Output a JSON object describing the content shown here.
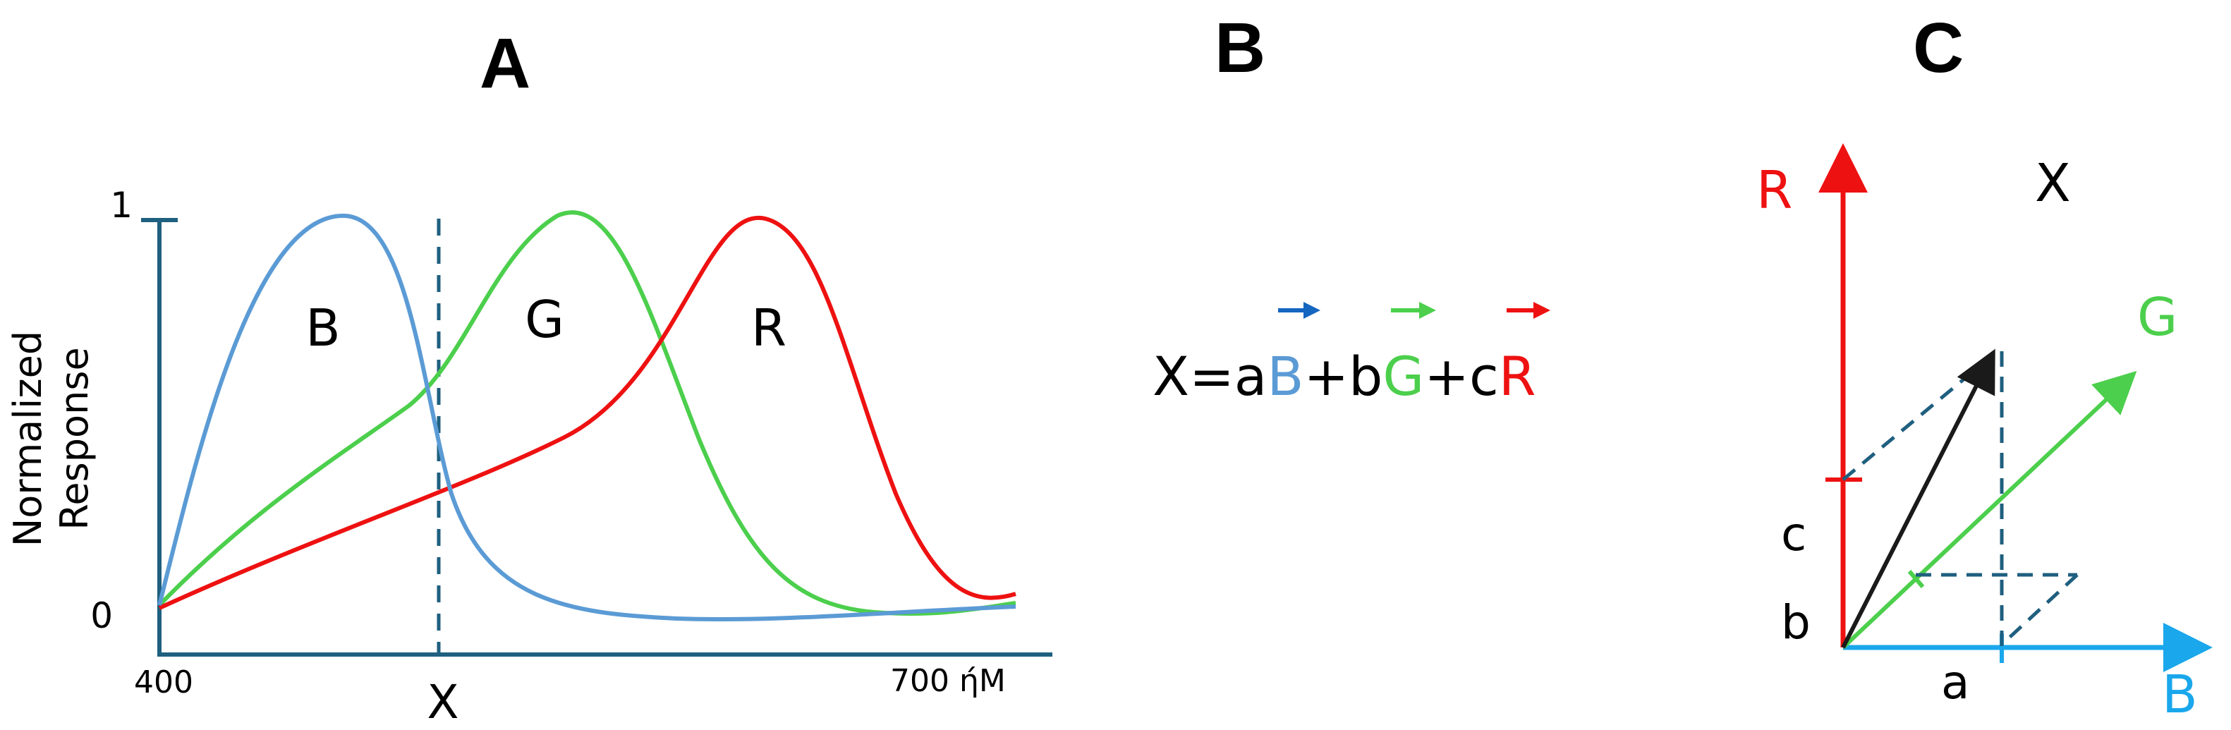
{
  "panels": {
    "a": {
      "label": "A"
    },
    "b": {
      "label": "B"
    },
    "c": {
      "label": "C"
    }
  },
  "colors": {
    "axis": "#1f5f7f",
    "blue_curve": "#5b9bd5",
    "green_curve": "#4ccf4c",
    "red_curve": "#ee1111",
    "blue_vector": "#1aa7ec",
    "blue_arrow": "#1566c0",
    "vector_x": "#1a1a1a"
  },
  "panel_a": {
    "y_axis_title_line1": "Normalized",
    "y_axis_title_line2": "Response",
    "y_tick_top": "1",
    "y_tick_bottom": "0",
    "x_tick_left": "400",
    "x_tick_right": "700 ήM",
    "marker_label": "X",
    "curve_labels": {
      "blue": "B",
      "green": "G",
      "red": "R"
    }
  },
  "panel_b": {
    "equation": {
      "lhs": "X=a",
      "blue_symbol": "B",
      "plus1": "+b",
      "green_symbol": "G",
      "plus2": "+c",
      "red_symbol": "R"
    }
  },
  "panel_c": {
    "axis_r": "R",
    "axis_g": "G",
    "axis_b": "B",
    "vector_x": "X",
    "coef_a": "a",
    "coef_b": "b",
    "coef_c": "c"
  }
}
